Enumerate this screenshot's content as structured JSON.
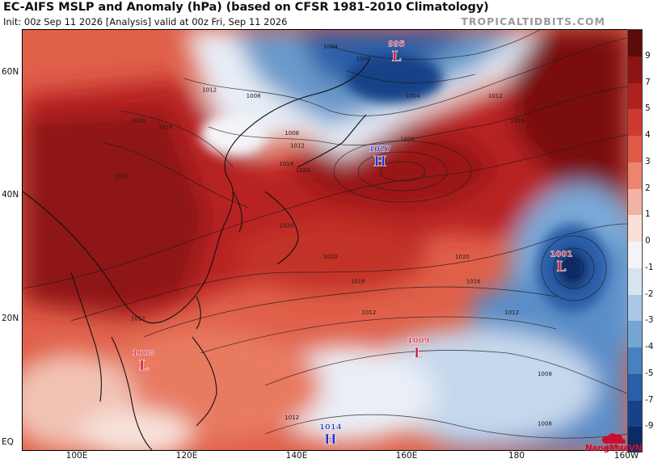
{
  "header": {
    "title": "EC-AIFS MSLP and Anomaly (hPa) (based on CFSR 1981-2010 Climatology)",
    "subtitle": "Init: 00z Sep 11 2026   [Analysis]   valid at 00z Fri, Sep 11 2026",
    "brand": "TROPICALTIDBITS.COM"
  },
  "map": {
    "region": "Western Pacific / East Asia",
    "lat_labels": [
      {
        "label": "60N",
        "lat": 60
      },
      {
        "label": "40N",
        "lat": 40
      },
      {
        "label": "20N",
        "lat": 20
      },
      {
        "label": "EQ",
        "lat": 0
      }
    ],
    "lon_labels": [
      {
        "label": "100E",
        "lon": 100
      },
      {
        "label": "120E",
        "lon": 120
      },
      {
        "label": "140E",
        "lon": 140
      },
      {
        "label": "160E",
        "lon": 160
      },
      {
        "label": "180",
        "lon": 180
      },
      {
        "label": "160W",
        "lon": 200
      }
    ],
    "pressure_centers": [
      {
        "type": "L",
        "value": "995",
        "lat": 63,
        "lon": 158,
        "color": "#d01c3c"
      },
      {
        "type": "H",
        "value": "1027",
        "lat": 46,
        "lon": 155,
        "color": "#1a2ec8"
      },
      {
        "type": "L",
        "value": "1001",
        "lat": 29,
        "lon": 188,
        "color": "#d01c3c"
      },
      {
        "type": "L",
        "value": "1009",
        "lat": 15,
        "lon": 162,
        "color": "#d01c3c"
      },
      {
        "type": "L",
        "value": "1008",
        "lat": 13,
        "lon": 112,
        "color": "#d01c3c"
      },
      {
        "type": "H",
        "value": "1014",
        "lat": 1,
        "lon": 146,
        "color": "#1a2ec8"
      }
    ],
    "isobar_labels": [
      {
        "value": "1004",
        "lat": 64,
        "lon": 146
      },
      {
        "value": "1000",
        "lat": 62,
        "lon": 152
      },
      {
        "value": "1012",
        "lat": 57,
        "lon": 124
      },
      {
        "value": "1008",
        "lat": 56,
        "lon": 132
      },
      {
        "value": "1004",
        "lat": 56,
        "lon": 161
      },
      {
        "value": "1012",
        "lat": 56,
        "lon": 176
      },
      {
        "value": "1008",
        "lat": 50,
        "lon": 139
      },
      {
        "value": "1012",
        "lat": 48,
        "lon": 140
      },
      {
        "value": "1016",
        "lat": 52,
        "lon": 180
      },
      {
        "value": "1020",
        "lat": 52,
        "lon": 111
      },
      {
        "value": "1016",
        "lat": 51,
        "lon": 116
      },
      {
        "value": "1020",
        "lat": 49,
        "lon": 160
      },
      {
        "value": "1016",
        "lat": 45,
        "lon": 138
      },
      {
        "value": "1020",
        "lat": 44,
        "lon": 141
      },
      {
        "value": "1020",
        "lat": 43,
        "lon": 108
      },
      {
        "value": "1020",
        "lat": 35,
        "lon": 138
      },
      {
        "value": "1020",
        "lat": 30,
        "lon": 146
      },
      {
        "value": "1020",
        "lat": 30,
        "lon": 170
      },
      {
        "value": "1016",
        "lat": 26,
        "lon": 151
      },
      {
        "value": "1016",
        "lat": 26,
        "lon": 172
      },
      {
        "value": "1012",
        "lat": 20,
        "lon": 111
      },
      {
        "value": "1012",
        "lat": 21,
        "lon": 153
      },
      {
        "value": "1012",
        "lat": 21,
        "lon": 179
      },
      {
        "value": "1008",
        "lat": 11,
        "lon": 185
      },
      {
        "value": "1012",
        "lat": 4,
        "lon": 139
      },
      {
        "value": "1008",
        "lat": 3,
        "lon": 185
      }
    ]
  },
  "colorbar": {
    "labels": [
      "9",
      "7",
      "5",
      "4",
      "3",
      "2",
      "1",
      "0",
      "-1",
      "-2",
      "-3",
      "-4",
      "-5",
      "-7",
      "-9"
    ],
    "colors": [
      "#5e0a0a",
      "#8c1414",
      "#b02020",
      "#cf3a30",
      "#e05a48",
      "#ec8470",
      "#f4b2a2",
      "#fbe0d8",
      "#f4f4f8",
      "#d6e4f2",
      "#a8c8e6",
      "#74a6d4",
      "#4682c0",
      "#2a5ea8",
      "#184288",
      "#0c2a66"
    ]
  },
  "logo": {
    "text": "NangMuaVN"
  }
}
